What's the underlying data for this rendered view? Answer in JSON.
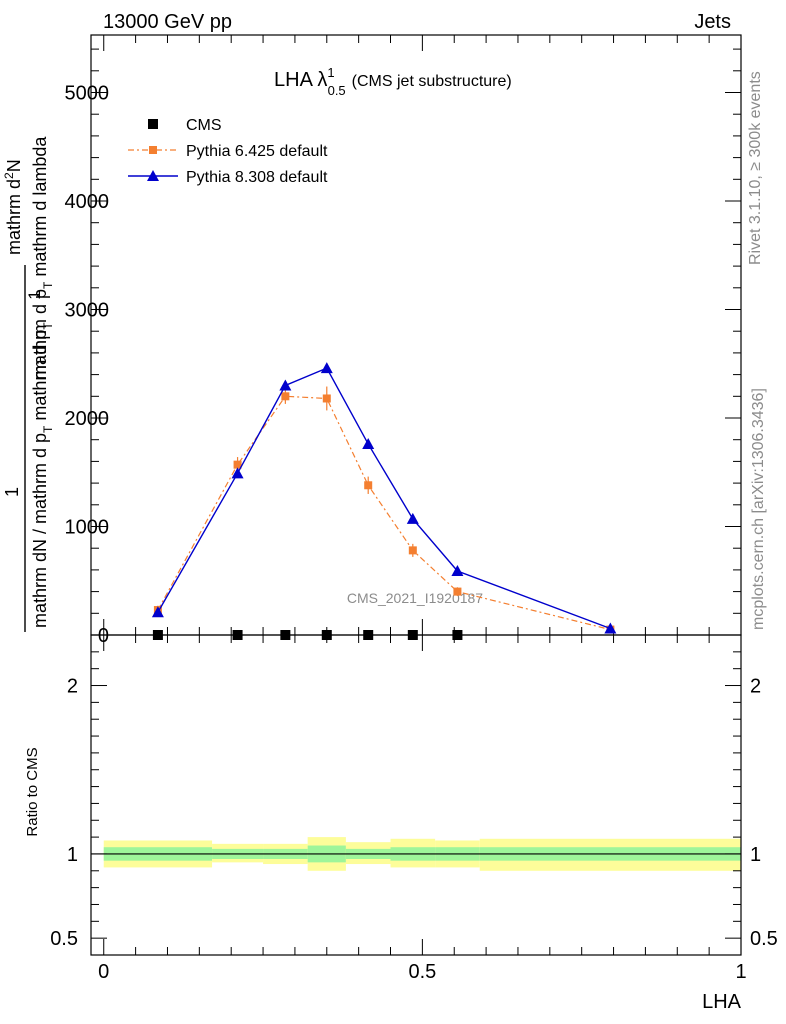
{
  "header": {
    "left": "13000 GeV pp",
    "right": "Jets"
  },
  "side_text": {
    "rivet": "Rivet 3.1.10, ≥ 300k events",
    "mcplots": "mcplots.cern.ch [arXiv:1306.3436]"
  },
  "chart_data": {
    "type": "line",
    "title_main": "LHA λ",
    "title_sup": "1",
    "title_sub": "0.5",
    "title_suffix": "(CMS jet substructure)",
    "watermark": "CMS_2021_I1920187",
    "ylabel_num_top": "mathrm d",
    "ylabel_num_top_sup": "2",
    "ylabel_num_top_rest": "N",
    "ylabel_num_bottom": "mathrm d p",
    "ylabel_num_bottom_sub": "T",
    "ylabel_num_bottom_rest": " mathrm d lambda",
    "ylabel_one": "1",
    "ylabel_den": "mathrm dN / mathrm d p",
    "ylabel_den_sub": "T",
    "ylabel_den_rest": " mathrm d p",
    "ylabel_den_sub2": "T",
    "ratio_ylabel": "Ratio to CMS",
    "xlabel": "LHA",
    "main_yticks": [
      "0",
      "1000",
      "2000",
      "3000",
      "4000",
      "5000"
    ],
    "main_ytick_values": [
      0,
      1000,
      2000,
      3000,
      4000,
      5000
    ],
    "ylim": [
      0,
      5530
    ],
    "xlim": [
      -0.02,
      1.0
    ],
    "ratio_ylim": [
      0.4,
      2.3
    ],
    "ratio_yticks": [
      "0.5",
      "1",
      "2"
    ],
    "ratio_ytick_values": [
      0.5,
      1,
      2
    ],
    "xticks": [
      "0",
      "0.5",
      "1"
    ],
    "xtick_values": [
      0,
      0.5,
      1
    ],
    "legend": [
      "CMS",
      "Pythia 6.425 default",
      "Pythia 8.308 default"
    ],
    "series": [
      {
        "name": "CMS",
        "color": "#000000",
        "marker": "square",
        "x": [
          0.085,
          0.21,
          0.285,
          0.35,
          0.415,
          0.485,
          0.555
        ],
        "y": [
          0,
          0,
          0,
          0,
          0,
          0,
          0
        ]
      },
      {
        "name": "Pythia 6.425 default",
        "color": "#f47f30",
        "marker": "square",
        "x": [
          0.085,
          0.21,
          0.285,
          0.35,
          0.415,
          0.485,
          0.555,
          0.795
        ],
        "y": [
          230,
          1570,
          2200,
          2180,
          1380,
          780,
          400,
          50
        ],
        "err": [
          40,
          70,
          70,
          110,
          80,
          60,
          40,
          15
        ]
      },
      {
        "name": "Pythia 8.308 default",
        "color": "#0000cc",
        "marker": "triangle",
        "x": [
          0.085,
          0.21,
          0.285,
          0.35,
          0.415,
          0.485,
          0.555,
          0.795
        ],
        "y": [
          210,
          1490,
          2300,
          2460,
          1760,
          1070,
          590,
          60
        ]
      }
    ],
    "ratio_bands": {
      "edges": [
        0,
        0.17,
        0.25,
        0.32,
        0.38,
        0.45,
        0.52,
        0.59,
        1.0
      ],
      "inner_lo": [
        0.96,
        0.97,
        0.97,
        0.95,
        0.97,
        0.96,
        0.96,
        0.96
      ],
      "inner_hi": [
        1.04,
        1.03,
        1.03,
        1.05,
        1.03,
        1.04,
        1.04,
        1.04
      ],
      "outer_lo": [
        0.92,
        0.95,
        0.94,
        0.9,
        0.94,
        0.92,
        0.92,
        0.9
      ],
      "outer_hi": [
        1.08,
        1.06,
        1.06,
        1.1,
        1.07,
        1.09,
        1.08,
        1.09
      ],
      "inner_color": "#9ef59a",
      "outer_color": "#fdfd9a"
    }
  }
}
